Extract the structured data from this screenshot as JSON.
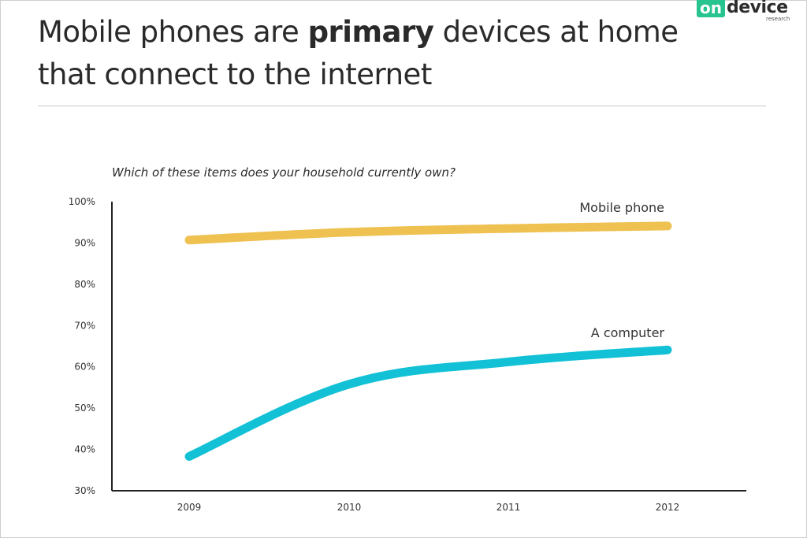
{
  "brand": {
    "logo_on": "on",
    "logo_device": "device",
    "logo_research": "research",
    "logo_accent_color": "#27c48f"
  },
  "slide": {
    "title_prefix": "Mobile phones are ",
    "title_bold": "primary",
    "title_suffix": " devices at home that connect to the internet"
  },
  "chart_data": {
    "type": "line",
    "title": "Which of these items does your household currently own?",
    "x": [
      "2009",
      "2010",
      "2011",
      "2012"
    ],
    "y_ticks": [
      "30%",
      "40%",
      "50%",
      "60%",
      "70%",
      "80%",
      "90%",
      "100%"
    ],
    "ylim": [
      30,
      100
    ],
    "grid": false,
    "series": [
      {
        "name": "Mobile phone",
        "values": [
          90.7,
          92.6,
          93.5,
          94.1
        ],
        "color": "#eec150"
      },
      {
        "name": "A computer",
        "values": [
          38.3,
          55.8,
          61.2,
          64.1
        ],
        "color": "#12c1d6"
      }
    ]
  }
}
